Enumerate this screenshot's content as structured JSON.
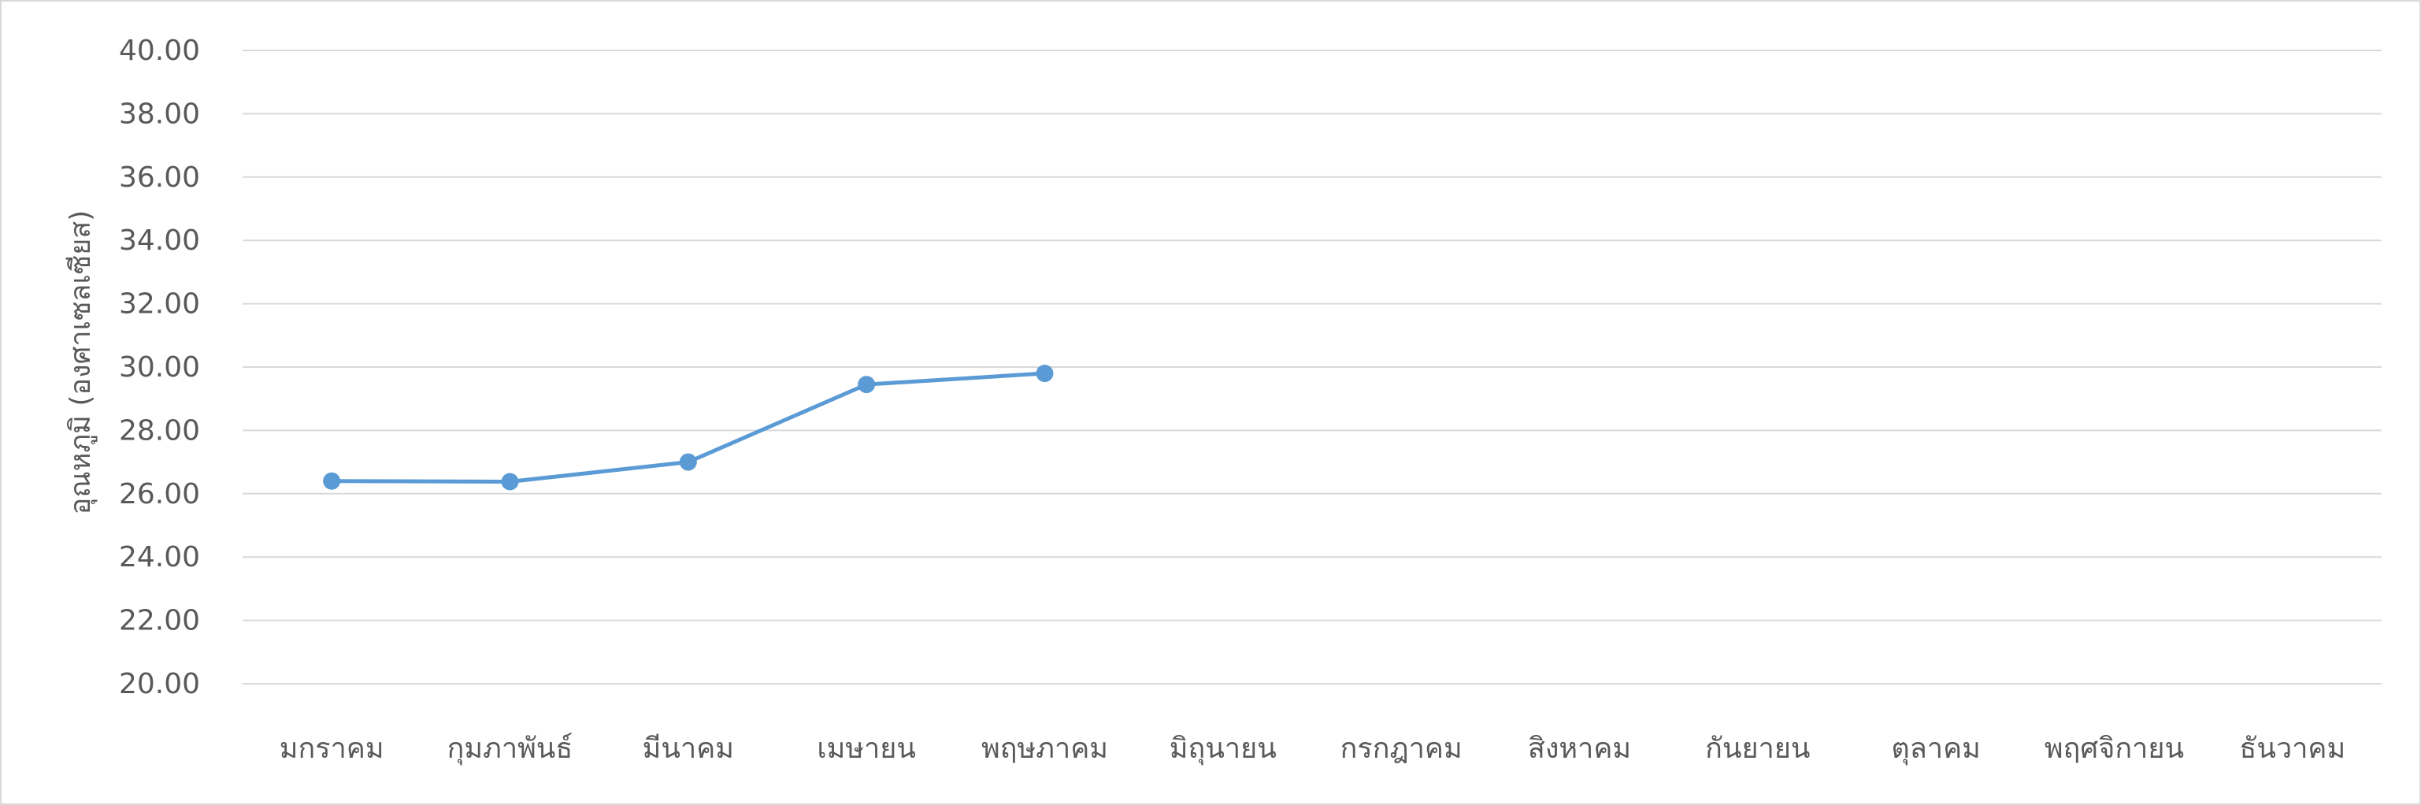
{
  "chart_data": {
    "type": "line",
    "title": "",
    "xlabel": "",
    "ylabel": "อุณหภูมิ (องศาเซลเซียส)",
    "ylim": [
      20,
      40
    ],
    "y_ticks": [
      "20.00",
      "22.00",
      "24.00",
      "26.00",
      "28.00",
      "30.00",
      "32.00",
      "34.00",
      "36.00",
      "38.00",
      "40.00"
    ],
    "categories": [
      "มกราคม",
      "กุมภาพันธ์",
      "มีนาคม",
      "เมษายน",
      "พฤษภาคม",
      "มิถุนายน",
      "กรกฎาคม",
      "สิงหาคม",
      "กันยายน",
      "ตุลาคม",
      "พฤศจิกายน",
      "ธันวาคม"
    ],
    "series": [
      {
        "values": [
          26.4,
          26.38,
          27.0,
          29.45,
          29.8,
          null,
          null,
          null,
          null,
          null,
          null,
          null
        ]
      }
    ],
    "grid": true,
    "legend": "none",
    "colors": {
      "line": "#5b9bd5",
      "marker": "#5b9bd5",
      "grid": "#d9d9d9",
      "text": "#595959",
      "border": "#d9d9d9"
    }
  }
}
